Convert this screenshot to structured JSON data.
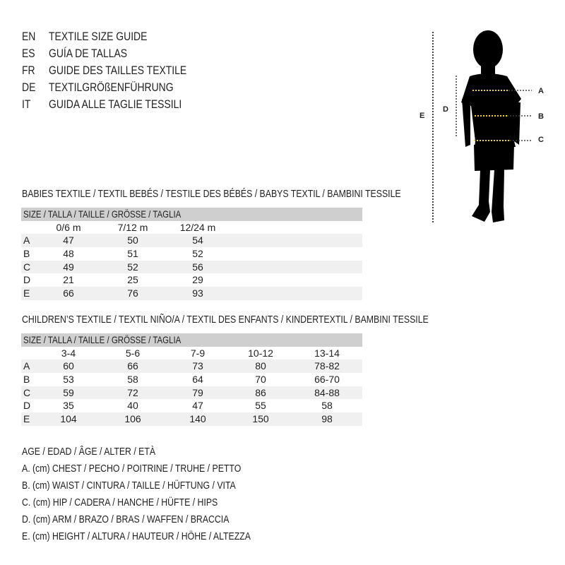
{
  "header": {
    "languages": [
      {
        "code": "EN",
        "text": "TEXTILE SIZE GUIDE"
      },
      {
        "code": "ES",
        "text": "GUÍA DE TALLAS"
      },
      {
        "code": "FR",
        "text": "GUIDE DES TAILLES TEXTILE"
      },
      {
        "code": "DE",
        "text": "TEXTILGRÖßENFÜHRUNG"
      },
      {
        "code": "IT",
        "text": "GUIDA ALLE TAGLIE TESSILI"
      }
    ]
  },
  "figure": {
    "labels": {
      "A": "A",
      "B": "B",
      "C": "C",
      "D": "D",
      "E": "E"
    },
    "measure_line_color": "#f2d600"
  },
  "babies": {
    "title": "BABIES TEXTILE / TEXTIL BEBÉS / TESTILE DES BÉBÉS / BABYS TEXTIL / BAMBINI TESSILE",
    "size_header": "SIZE / TALLA / TAILLE / GRÖSSE / TAGLIA",
    "columns": [
      "0/6 m",
      "7/12 m",
      "12/24 m"
    ],
    "rows": [
      {
        "label": "A",
        "values": [
          "47",
          "50",
          "54"
        ]
      },
      {
        "label": "B",
        "values": [
          "48",
          "51",
          "52"
        ]
      },
      {
        "label": "C",
        "values": [
          "49",
          "52",
          "56"
        ]
      },
      {
        "label": "D",
        "values": [
          "21",
          "25",
          "29"
        ]
      },
      {
        "label": "E",
        "values": [
          "66",
          "76",
          "93"
        ]
      }
    ]
  },
  "children": {
    "title": "CHILDREN’S TEXTILE / TEXTIL NIÑO/A / TEXTIL DES ENFANTS / KINDERTEXTIL / BAMBINI TESSILE",
    "size_header": "SIZE / TALLA / TAILLE / GRÖSSE / TAGLIA",
    "columns": [
      "3-4",
      "5-6",
      "7-9",
      "10-12",
      "13-14"
    ],
    "rows": [
      {
        "label": "A",
        "values": [
          "60",
          "66",
          "73",
          "80",
          "78-82"
        ]
      },
      {
        "label": "B",
        "values": [
          "53",
          "58",
          "64",
          "70",
          "66-70"
        ]
      },
      {
        "label": "C",
        "values": [
          "59",
          "72",
          "79",
          "86",
          "84-88"
        ]
      },
      {
        "label": "D",
        "values": [
          "35",
          "40",
          "47",
          "55",
          "58"
        ]
      },
      {
        "label": "E",
        "values": [
          "104",
          "106",
          "140",
          "150",
          "98"
        ]
      }
    ]
  },
  "legend": [
    "AGE / EDAD / ÂGE / ALTER / ETÀ",
    "A. (cm) CHEST / PECHO / POITRINE / TRUHE / PETTO",
    "B. (cm) WAIST / CINTURA / TAILLE / HÜFTUNG / VITA",
    "C. (cm) HIP / CADERA / HANCHE / HÜFTE / HIPS",
    "D. (cm) ARM / BRAZO / BRAS / WAFFEN / BRACCIA",
    "E. (cm) HEIGHT / ALTURA / HAUTEUR / HÖHE / ALTEZZA"
  ]
}
